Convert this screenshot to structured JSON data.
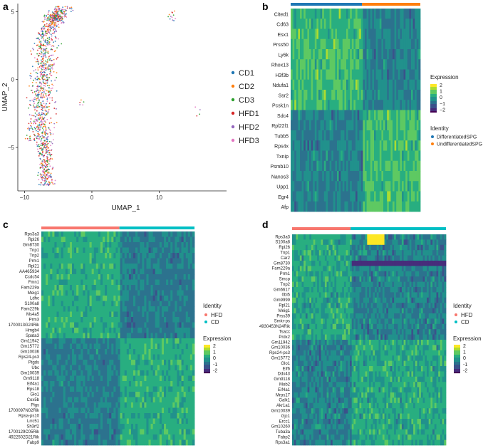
{
  "colors": {
    "viridis": [
      "#440154",
      "#472d7b",
      "#3b528b",
      "#2c728e",
      "#21918c",
      "#28ae80",
      "#5ec962",
      "#addc30",
      "#fde725"
    ],
    "identity_cd_hfd": {
      "HFD": "#f8766d",
      "CD": "#00bfc4"
    },
    "identity_spg": {
      "DifferentiatedSPG": "#1f77b4",
      "UndifferentiatedSPG": "#ff7f0e"
    },
    "umap_groups": {
      "CD1": "#1f77b4",
      "CD2": "#ff7f0e",
      "CD3": "#2ca02c",
      "HFD1": "#d62728",
      "HFD2": "#9467bd",
      "HFD3": "#e377c2"
    }
  },
  "chart_data": [
    {
      "panel": "a",
      "type": "scatter",
      "xlabel": "UMAP_1",
      "ylabel": "UMAP_2",
      "x_ticks": [
        "−10",
        "0",
        "10"
      ],
      "y_ticks": [
        "5",
        "0",
        "−5"
      ],
      "xlim": [
        -11,
        20
      ],
      "ylim": [
        -8.2,
        5.6
      ],
      "legend": [
        "CD1",
        "CD2",
        "CD3",
        "HFD1",
        "HFD2",
        "HFD3"
      ],
      "legend_position": "right",
      "clusters": [
        {
          "name": "main-mass",
          "x_range": [
            -10.5,
            -4
          ],
          "y_range": [
            -7.8,
            5.4
          ],
          "approx_points": 1100
        },
        {
          "name": "small-right-top",
          "x_range": [
            11.3,
            12.5
          ],
          "y_range": [
            4.2,
            5.2
          ],
          "approx_points": 12
        },
        {
          "name": "small-mid",
          "x_range": [
            -1.8,
            -1.2
          ],
          "y_range": [
            -1.9,
            -1.5
          ],
          "approx_points": 5
        },
        {
          "name": "small-right-mid",
          "x_range": [
            15.3,
            16.2
          ],
          "y_range": [
            -2.8,
            -2.0
          ],
          "approx_points": 4
        }
      ]
    },
    {
      "panel": "b",
      "type": "heatmap",
      "genes": [
        "Cited1",
        "Cd63",
        "Esx1",
        "Prss50",
        "Ly6k",
        "Rhox13",
        "H3f3b",
        "Ndufa1",
        "Ssr2",
        "Pcsk1n",
        "Sdc4",
        "Rpl22l1",
        "Tubb5",
        "Rps4x",
        "Txnip",
        "Psmb10",
        "Nanos3",
        "Upp1",
        "Egr4",
        "Afp"
      ],
      "groups": [
        "DifferentiatedSPG",
        "UndifferentiatedSPG"
      ],
      "group_fractions": [
        0.55,
        0.45
      ],
      "pattern": {
        "top_half_high_in": "DifferentiatedSPG",
        "bottom_half_high_in": "UndifferentiatedSPG"
      },
      "legend_expression_title": "Expression",
      "legend_expression_ticks": [
        "2",
        "1",
        "0",
        "−1",
        "−2"
      ],
      "legend_identity_title": "Identity"
    },
    {
      "panel": "c",
      "type": "heatmap",
      "genes": [
        "Rps3a3",
        "Rpl26",
        "Gm8730",
        "Tnp1",
        "Tnp2",
        "Prm1",
        "Rpl21",
        "AA465934",
        "Ccdc54",
        "Fmn1",
        "Fam229a",
        "Meig1",
        "Ldhc",
        "S100a8",
        "Fam229b",
        "Ms4a5",
        "Prm3",
        "1700013G24Rik",
        "Hmgb4",
        "Spata3",
        "Gm11942",
        "Gm15772",
        "Gm10036",
        "Rps24-ps3",
        "Ptgds",
        "Ubc",
        "Gm10039",
        "Gm9118",
        "Eif4a1",
        "Rps18",
        "Glo1",
        "Cox5b",
        "Pigs",
        "1700097N02Rik",
        "Rpsa-ps10",
        "Lrrc51",
        "Sh3rf2",
        "1700129C05Rik",
        "4922502D21Rik",
        "Fabp9"
      ],
      "groups": [
        "HFD",
        "CD"
      ],
      "group_fractions": [
        0.51,
        0.49
      ],
      "split_gene_index": 20,
      "legend_identity_title": "Identity",
      "legend_expression_title": "Expression",
      "legend_expression_ticks": [
        "2",
        "1",
        "0",
        "-1",
        "-2"
      ]
    },
    {
      "panel": "d",
      "type": "heatmap",
      "genes": [
        "Rps3a3",
        "S100a8",
        "Rpl26",
        "Tnp1",
        "Car2",
        "Gm8730",
        "Fam229a",
        "Prm1",
        "Smcp",
        "Tnp2",
        "Gm6617",
        "0bi5",
        "Gm9999",
        "Rpl21",
        "Meig1",
        "Prss39",
        "Smkr-ps",
        "4930453N24Rik",
        "Tsacc",
        "Prdx2",
        "Gm11942",
        "Gm10036",
        "Rps24-ps3",
        "Gm15772",
        "Glo1",
        "Eif6",
        "Ddx43",
        "Gm9118",
        "Mob2",
        "Eif4a1",
        "Mrps17",
        "Galk1",
        "Akr1a1",
        "Gm10039",
        "Gjc1",
        "Ercc1",
        "Gm10260",
        "Tuba3a",
        "Fabp2",
        "Rps3a1"
      ],
      "groups": [
        "HFD",
        "CD"
      ],
      "group_fractions": [
        0.38,
        0.62
      ],
      "split_gene_index": 20,
      "legend_identity_title": "Identity",
      "legend_expression_title": "Expression",
      "legend_expression_ticks": [
        "2",
        "1",
        "0",
        "-1",
        "-2"
      ]
    }
  ]
}
